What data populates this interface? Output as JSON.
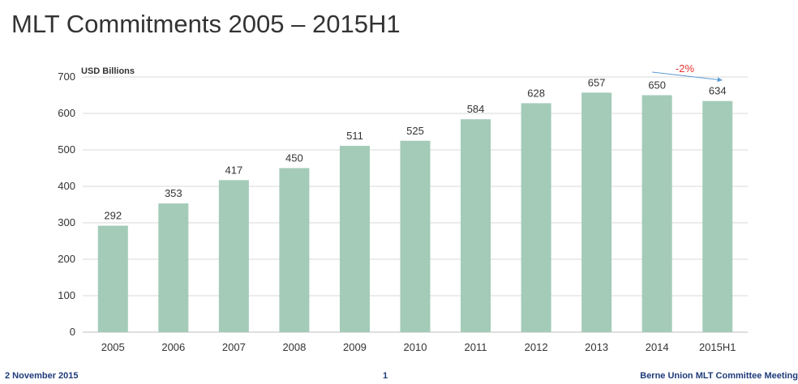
{
  "slide": {
    "title": "MLT Commitments 2005 – 2015H1"
  },
  "footer": {
    "date": "2 November 2015",
    "page": "1",
    "event": "Berne Union MLT Committee Meeting"
  },
  "colors": {
    "bar": "#a3cbb8",
    "grid": "#d9d9d9",
    "text": "#333333",
    "change": "#e8332f",
    "arrow": "#5b9bd5",
    "footer": "#1f3b7a"
  },
  "chart_data": {
    "type": "bar",
    "title": "",
    "ylabel": "USD Billions",
    "xlabel": "",
    "ylim": [
      0,
      700
    ],
    "yticks": [
      0,
      100,
      200,
      300,
      400,
      500,
      600,
      700
    ],
    "grid": true,
    "categories": [
      "2005",
      "2006",
      "2007",
      "2008",
      "2009",
      "2010",
      "2011",
      "2012",
      "2013",
      "2014",
      "2015H1"
    ],
    "values": [
      292,
      353,
      417,
      450,
      511,
      525,
      584,
      628,
      657,
      650,
      634
    ],
    "annotation": {
      "text": "-2%",
      "from": "2014",
      "to": "2015H1"
    }
  }
}
